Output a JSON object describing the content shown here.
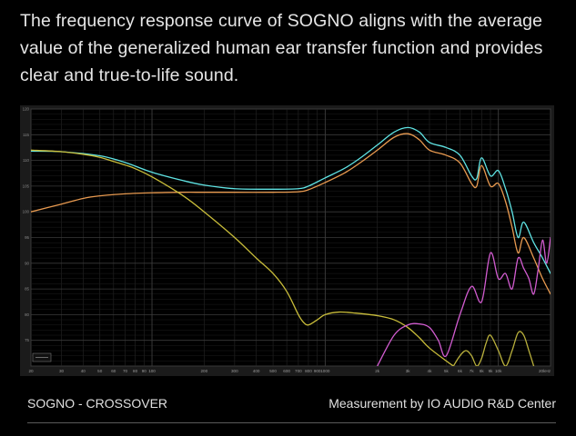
{
  "headline": "The frequency response curve of SOGNO aligns with the average value of the generalized human ear transfer function and provides clear and true-to-life sound.",
  "footer": {
    "left": "SOGNO - CROSSOVER",
    "right": "Measurement by IO AUDIO R&D Center"
  },
  "chart_data": {
    "type": "line",
    "title": "",
    "xlabel": "",
    "ylabel": "",
    "x_scale": "log",
    "xlim": [
      20,
      20000
    ],
    "ylim": [
      70,
      120
    ],
    "grid": true,
    "legend": "none",
    "x_ticks": [
      20,
      30,
      40,
      50,
      60,
      70,
      80,
      90,
      100,
      200,
      300,
      400,
      500,
      600,
      700,
      800,
      900,
      1000,
      2000,
      3000,
      4000,
      5000,
      6000,
      7000,
      8000,
      9000,
      10000,
      20000
    ],
    "x_tick_labels": [
      "20",
      "30",
      "40",
      "50",
      "60",
      "70",
      "80",
      "90",
      "100",
      "200",
      "300",
      "400",
      "500",
      "600",
      "700",
      "800",
      "900",
      "1000",
      "2k",
      "3k",
      "4k",
      "5k",
      "6k",
      "7k",
      "8k",
      "9k",
      "10k",
      "20kHz"
    ],
    "y_ticks": [
      75,
      80,
      85,
      90,
      95,
      100,
      105,
      110,
      115,
      120
    ],
    "y_tick_labels": [
      "75",
      "80",
      "85",
      "90",
      "95",
      "100",
      "105",
      "110",
      "115",
      "120"
    ],
    "series": [
      {
        "color": "#5fe3e3",
        "x": [
          20,
          30,
          50,
          70,
          100,
          150,
          200,
          300,
          500,
          700,
          800,
          1000,
          1300,
          1600,
          2000,
          2500,
          3000,
          3500,
          4000,
          5000,
          6000,
          7000,
          7500,
          8000,
          9000,
          10000,
          11000,
          12000,
          13000,
          14000,
          16000,
          18000,
          20000
        ],
        "y": [
          111.8,
          111.7,
          110.9,
          109.6,
          107.7,
          106.1,
          105.2,
          104.5,
          104.4,
          104.5,
          105.0,
          106.6,
          108.5,
          110.5,
          113.0,
          115.5,
          116.4,
          115.5,
          113.5,
          112.5,
          111.0,
          107.0,
          106.5,
          110.5,
          107.0,
          108.0,
          104.5,
          100.0,
          95.0,
          98.0,
          94.0,
          91.0,
          88.0
        ]
      },
      {
        "color": "#e89a50",
        "x": [
          20,
          30,
          40,
          50,
          70,
          100,
          150,
          200,
          300,
          500,
          700,
          800,
          1000,
          1300,
          1600,
          2000,
          2500,
          3000,
          3500,
          4000,
          5000,
          6000,
          7000,
          7500,
          8000,
          9000,
          10000,
          11000,
          12000,
          13000,
          14000,
          16000,
          18000,
          20000
        ],
        "y": [
          100.0,
          101.5,
          102.6,
          103.1,
          103.5,
          103.7,
          103.8,
          103.8,
          103.8,
          103.8,
          103.9,
          104.3,
          105.7,
          107.6,
          109.6,
          112.0,
          114.5,
          115.2,
          114.0,
          112.0,
          111.0,
          109.5,
          105.5,
          105.0,
          109.0,
          105.0,
          105.5,
          102.0,
          97.0,
          92.0,
          95.0,
          91.0,
          87.0,
          84.0
        ]
      },
      {
        "color": "#c9bd3a",
        "x": [
          20,
          30,
          40,
          50,
          60,
          70,
          80,
          100,
          150,
          200,
          300,
          400,
          500,
          600,
          700,
          750,
          800,
          900,
          1000,
          1200,
          1500,
          2000,
          2500,
          3000,
          3500,
          4000,
          5000,
          5500
        ],
        "y": [
          112.0,
          111.7,
          111.2,
          110.6,
          109.8,
          109.1,
          108.4,
          106.8,
          103.2,
          100.0,
          95.0,
          91.0,
          88.0,
          84.5,
          80.0,
          78.5,
          78.0,
          79.0,
          80.0,
          80.5,
          80.3,
          79.8,
          79.0,
          77.5,
          75.5,
          73.5,
          71.0,
          70.0
        ]
      },
      {
        "color": "#d25cd0",
        "x": [
          2000,
          2500,
          3000,
          3500,
          4000,
          4500,
          5000,
          6000,
          7000,
          8000,
          9000,
          10000,
          11000,
          12000,
          13000,
          14000,
          15000,
          16000,
          17000,
          18000,
          19000,
          20000
        ],
        "y": [
          70.0,
          76.0,
          78.0,
          78.2,
          77.5,
          75.0,
          72.0,
          80.0,
          85.5,
          82.5,
          92.0,
          87.0,
          88.0,
          85.0,
          91.0,
          89.0,
          87.0,
          84.0,
          89.0,
          94.5,
          90.0,
          95.0
        ]
      },
      {
        "color": "#b9b03c",
        "x": [
          5500,
          6000,
          6500,
          7000,
          7500,
          8000,
          8500,
          9000,
          10000,
          11000,
          12000,
          13000,
          14000,
          15000,
          16000
        ],
        "y": [
          70.0,
          72.0,
          73.0,
          72.0,
          70.0,
          71.5,
          74.5,
          76.0,
          73.0,
          70.0,
          73.0,
          76.5,
          76.0,
          73.0,
          70.0
        ]
      }
    ]
  }
}
